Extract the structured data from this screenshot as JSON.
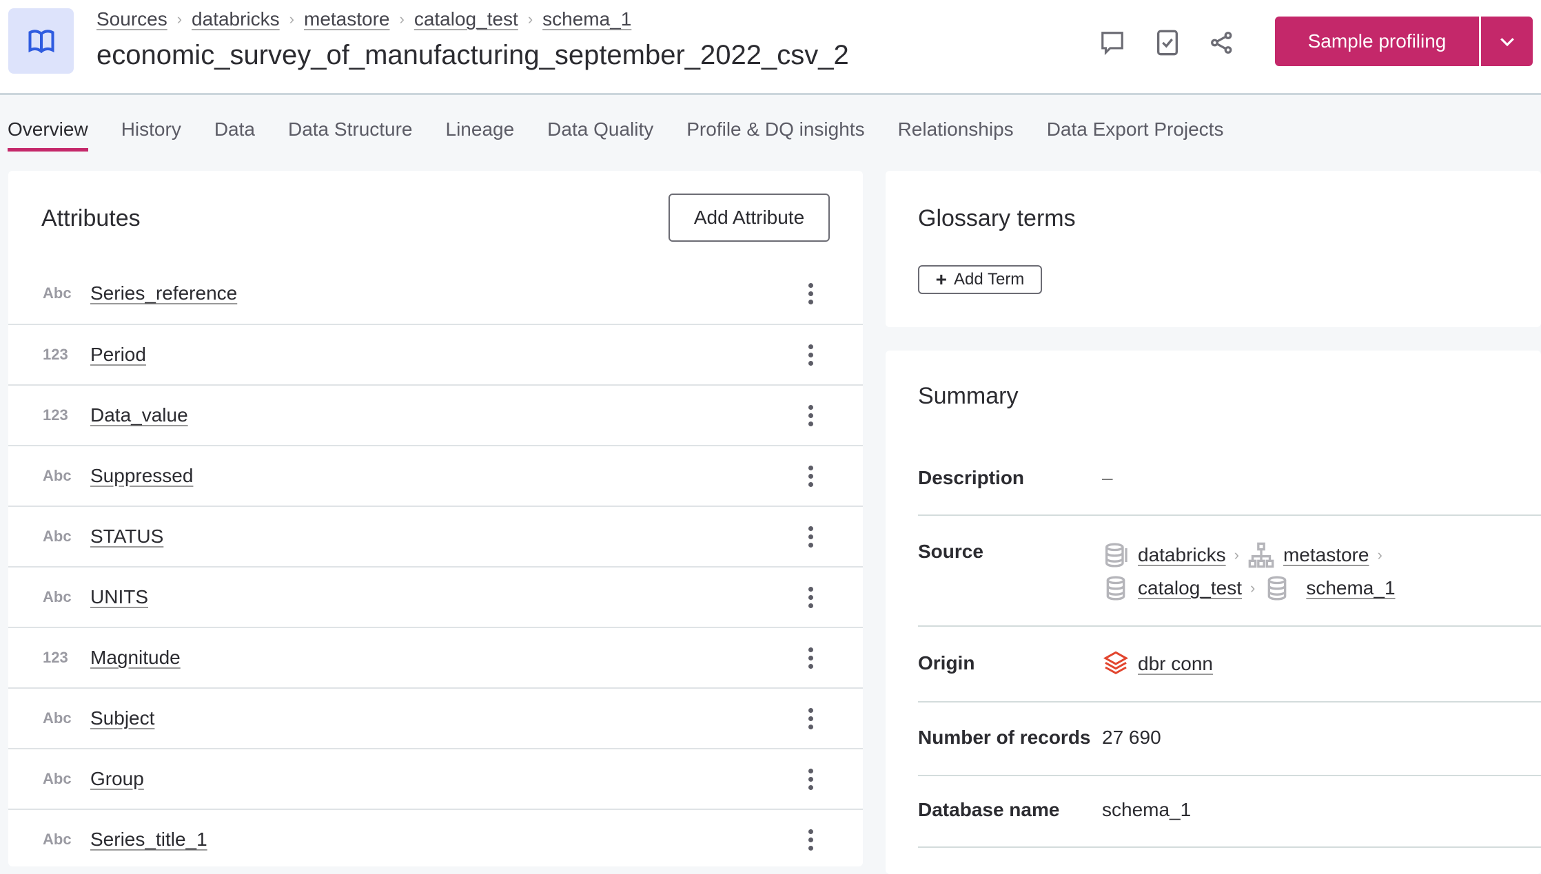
{
  "header": {
    "breadcrumb": [
      "Sources",
      "databricks",
      "metastore",
      "catalog_test",
      "schema_1"
    ],
    "title": "economic_survey_of_manufacturing_september_2022_csv_2",
    "primary_button": "Sample profiling",
    "accent": "#c4286a"
  },
  "tabs": [
    "Overview",
    "History",
    "Data",
    "Data Structure",
    "Lineage",
    "Data Quality",
    "Profile & DQ insights",
    "Relationships",
    "Data Export Projects"
  ],
  "attributes": {
    "title": "Attributes",
    "add_button": "Add Attribute",
    "items": [
      {
        "type": "Abc",
        "name": "Series_reference"
      },
      {
        "type": "123",
        "name": "Period"
      },
      {
        "type": "123",
        "name": "Data_value"
      },
      {
        "type": "Abc",
        "name": "Suppressed"
      },
      {
        "type": "Abc",
        "name": "STATUS"
      },
      {
        "type": "Abc",
        "name": "UNITS"
      },
      {
        "type": "123",
        "name": "Magnitude"
      },
      {
        "type": "Abc",
        "name": "Subject"
      },
      {
        "type": "Abc",
        "name": "Group"
      },
      {
        "type": "Abc",
        "name": "Series_title_1"
      }
    ]
  },
  "glossary": {
    "title": "Glossary terms",
    "add_button": "Add Term"
  },
  "summary": {
    "title": "Summary",
    "description_label": "Description",
    "description_value": "–",
    "source_label": "Source",
    "source_path": [
      "databricks",
      "metastore",
      "catalog_test",
      "schema_1"
    ],
    "origin_label": "Origin",
    "origin_value": "dbr conn",
    "records_label": "Number of records",
    "records_value": "27 690",
    "dbname_label": "Database name",
    "dbname_value": "schema_1"
  }
}
